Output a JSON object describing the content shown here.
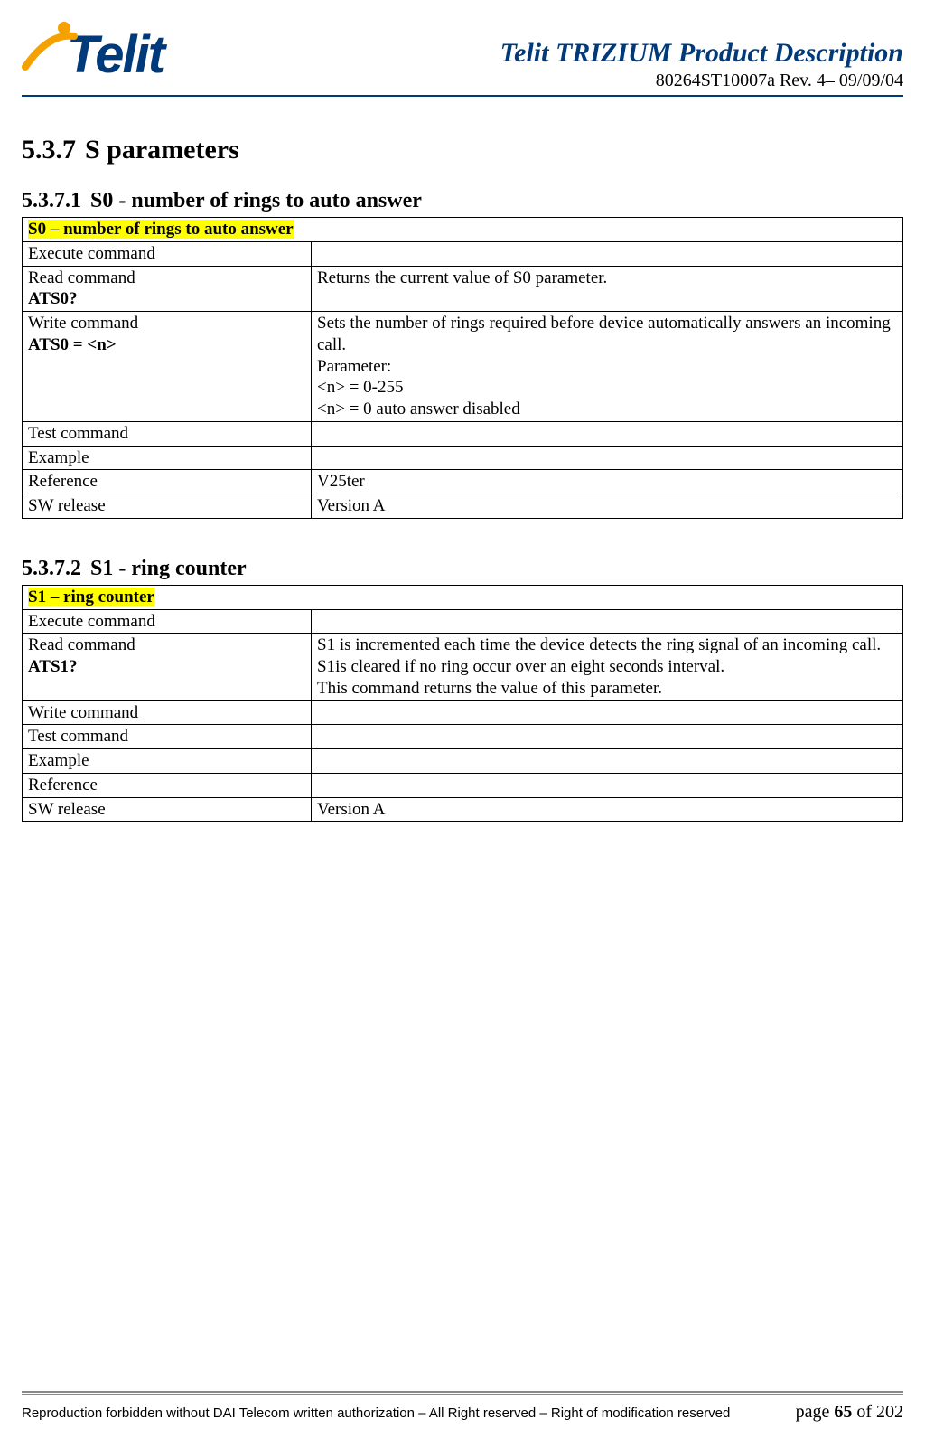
{
  "header": {
    "logo_text": "Telit",
    "doc_title": "Telit TRIZIUM Product Description",
    "doc_rev": "80264ST10007a  Rev. 4– 09/09/04",
    "colors": {
      "brand_blue": "#003a7a",
      "brand_orange": "#f5a100",
      "highlight": "#ffff00"
    }
  },
  "section": {
    "num": "5.3.7",
    "title": "S parameters"
  },
  "sub1": {
    "num": "5.3.7.1",
    "title": "S0 - number of rings to auto answer",
    "table": {
      "heading": "S0 – number of rings to auto answer",
      "rows": [
        {
          "left_line1": "Execute command",
          "left_line2": "",
          "right": ""
        },
        {
          "left_line1": "Read command",
          "left_line2": "ATS0?",
          "right": "Returns the current value of S0 parameter."
        },
        {
          "left_line1": "Write command",
          "left_line2": "ATS0 = <n>",
          "right": "Sets the number of rings required before device automatically answers an incoming call.\nParameter:\n<n> = 0-255\n<n> = 0 auto answer disabled"
        },
        {
          "left_line1": "Test command",
          "left_line2": "",
          "right": ""
        },
        {
          "left_line1": "Example",
          "left_line2": "",
          "right": ""
        },
        {
          "left_line1": "Reference",
          "left_line2": "",
          "right": "V25ter"
        },
        {
          "left_line1": "SW release",
          "left_line2": "",
          "right": "Version A"
        }
      ]
    }
  },
  "sub2": {
    "num": "5.3.7.2",
    "title": "S1 - ring counter",
    "table": {
      "heading": "S1 – ring counter",
      "rows": [
        {
          "left_line1": "Execute command",
          "left_line2": "",
          "right": ""
        },
        {
          "left_line1": "Read command",
          "left_line2": "ATS1?",
          "right": "S1 is incremented each time the device detects the ring signal of an incoming call. S1is cleared if no ring occur over an eight seconds interval.\nThis command returns the value of this parameter."
        },
        {
          "left_line1": "Write command",
          "left_line2": "",
          "right": ""
        },
        {
          "left_line1": "Test command",
          "left_line2": "",
          "right": ""
        },
        {
          "left_line1": "Example",
          "left_line2": "",
          "right": ""
        },
        {
          "left_line1": "Reference",
          "left_line2": "",
          "right": ""
        },
        {
          "left_line1": "SW release",
          "left_line2": "",
          "right": "Version A"
        }
      ]
    }
  },
  "footer": {
    "left": "Reproduction forbidden without DAI Telecom written authorization – All Right reserved – Right of modification reserved",
    "page_prefix": "page ",
    "page_num": "65",
    "page_suffix": " of 202"
  }
}
